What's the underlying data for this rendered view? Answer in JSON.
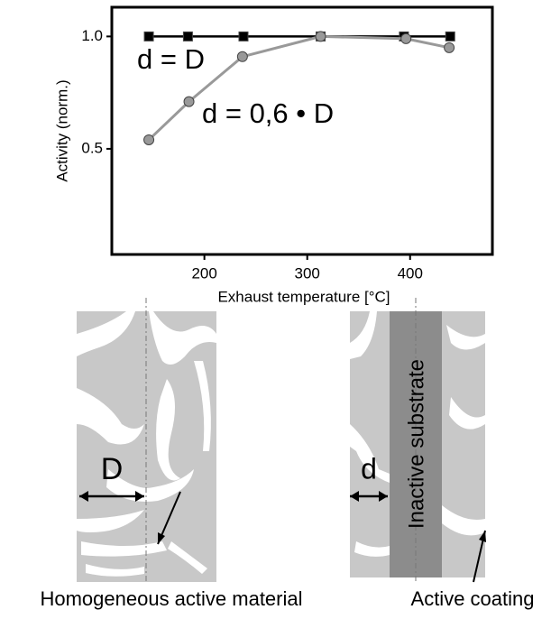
{
  "chart_data": {
    "type": "line",
    "y_label": "Activity (norm.)",
    "x_label": "Exhaust temperature [°C]",
    "annotations": [
      "d = D",
      "d = 0,6 • D"
    ],
    "xlim": [
      110,
      480
    ],
    "xticks": [
      200,
      300,
      400
    ],
    "ylim": [
      0.03,
      1.13
    ],
    "yticks": [
      0.5,
      {
        "value": 1,
        "label": "1.0"
      }
    ],
    "series": [
      {
        "name": "d = D",
        "color": "#000000",
        "marker": "square",
        "x": [
          146,
          184,
          238,
          313,
          394,
          439
        ],
        "values": [
          1,
          1,
          1,
          1,
          1,
          1
        ]
      },
      {
        "name": "d = 0,6 • D",
        "color": "#999999",
        "marker": "circle",
        "x": [
          146,
          185,
          237,
          313,
          396,
          438
        ],
        "values": [
          0.54,
          0.71,
          0.91,
          1,
          0.99,
          0.95
        ]
      }
    ]
  },
  "diagram": {
    "labels": [
      "D",
      "d",
      "Inactive substrate",
      "Homogeneous active material",
      "Active coating"
    ]
  }
}
